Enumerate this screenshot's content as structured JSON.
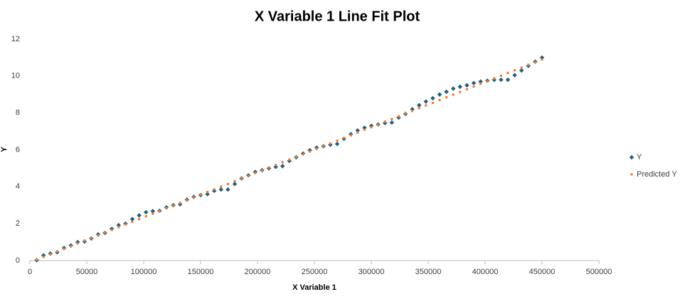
{
  "chart_data": {
    "type": "scatter",
    "title": "X Variable 1 Line Fit  Plot",
    "x_label": "X Variable 1",
    "y_label": "Y",
    "x": [
      6000,
      12000,
      18000,
      24000,
      30000,
      36000,
      42000,
      48000,
      54000,
      60000,
      66000,
      72000,
      78000,
      84000,
      90000,
      96000,
      102000,
      108000,
      114000,
      120000,
      126000,
      132000,
      138000,
      144000,
      150000,
      156000,
      162000,
      168000,
      174000,
      180000,
      186000,
      192000,
      198000,
      204000,
      210000,
      216000,
      222000,
      228000,
      234000,
      240000,
      246000,
      252000,
      258000,
      264000,
      270000,
      276000,
      282000,
      288000,
      294000,
      300000,
      306000,
      312000,
      318000,
      324000,
      330000,
      336000,
      342000,
      348000,
      354000,
      360000,
      366000,
      372000,
      378000,
      384000,
      390000,
      396000,
      402000,
      408000,
      414000,
      420000,
      426000,
      432000,
      438000,
      444000,
      450000
    ],
    "series": [
      {
        "name": "Y",
        "color": "#1f5f7a",
        "marker": "diamond",
        "values": [
          0.02,
          0.28,
          0.38,
          0.45,
          0.68,
          0.82,
          1.0,
          1.03,
          1.2,
          1.42,
          1.5,
          1.72,
          1.92,
          2.0,
          2.25,
          2.45,
          2.62,
          2.68,
          2.7,
          2.88,
          3.0,
          3.05,
          3.3,
          3.45,
          3.55,
          3.6,
          3.78,
          3.85,
          3.85,
          4.15,
          4.45,
          4.62,
          4.8,
          4.9,
          5.0,
          5.08,
          5.12,
          5.4,
          5.6,
          5.8,
          5.98,
          6.12,
          6.2,
          6.28,
          6.32,
          6.6,
          6.85,
          7.05,
          7.2,
          7.3,
          7.38,
          7.45,
          7.48,
          7.75,
          7.95,
          8.2,
          8.42,
          8.62,
          8.8,
          9.0,
          9.15,
          9.32,
          9.42,
          9.5,
          9.62,
          9.7,
          9.75,
          9.8,
          9.8,
          9.8,
          10.05,
          10.3,
          10.55,
          10.78,
          11.0
        ]
      },
      {
        "name": "Predicted Y",
        "color": "#ed7d31",
        "marker": "square",
        "values": [
          0.05,
          0.2,
          0.34,
          0.49,
          0.64,
          0.78,
          0.93,
          1.08,
          1.22,
          1.37,
          1.52,
          1.66,
          1.81,
          1.96,
          2.1,
          2.25,
          2.4,
          2.54,
          2.69,
          2.84,
          2.98,
          3.13,
          3.28,
          3.42,
          3.57,
          3.72,
          3.86,
          4.01,
          4.15,
          4.3,
          4.45,
          4.59,
          4.74,
          4.89,
          5.03,
          5.18,
          5.33,
          5.47,
          5.62,
          5.77,
          5.91,
          6.06,
          6.21,
          6.35,
          6.5,
          6.65,
          6.79,
          6.94,
          7.09,
          7.23,
          7.38,
          7.53,
          7.67,
          7.82,
          7.97,
          8.11,
          8.26,
          8.41,
          8.55,
          8.7,
          8.85,
          8.99,
          9.14,
          9.29,
          9.43,
          9.58,
          9.73,
          9.87,
          10.02,
          10.17,
          10.31,
          10.46,
          10.61,
          10.75,
          10.9
        ]
      }
    ],
    "xlim": [
      0,
      500000
    ],
    "xticks": [
      0,
      50000,
      100000,
      150000,
      200000,
      250000,
      300000,
      350000,
      400000,
      450000,
      500000
    ],
    "ylim": [
      0,
      12
    ],
    "yticks": [
      0,
      2,
      4,
      6,
      8,
      10,
      12
    ],
    "grid": false,
    "legend": "right"
  }
}
